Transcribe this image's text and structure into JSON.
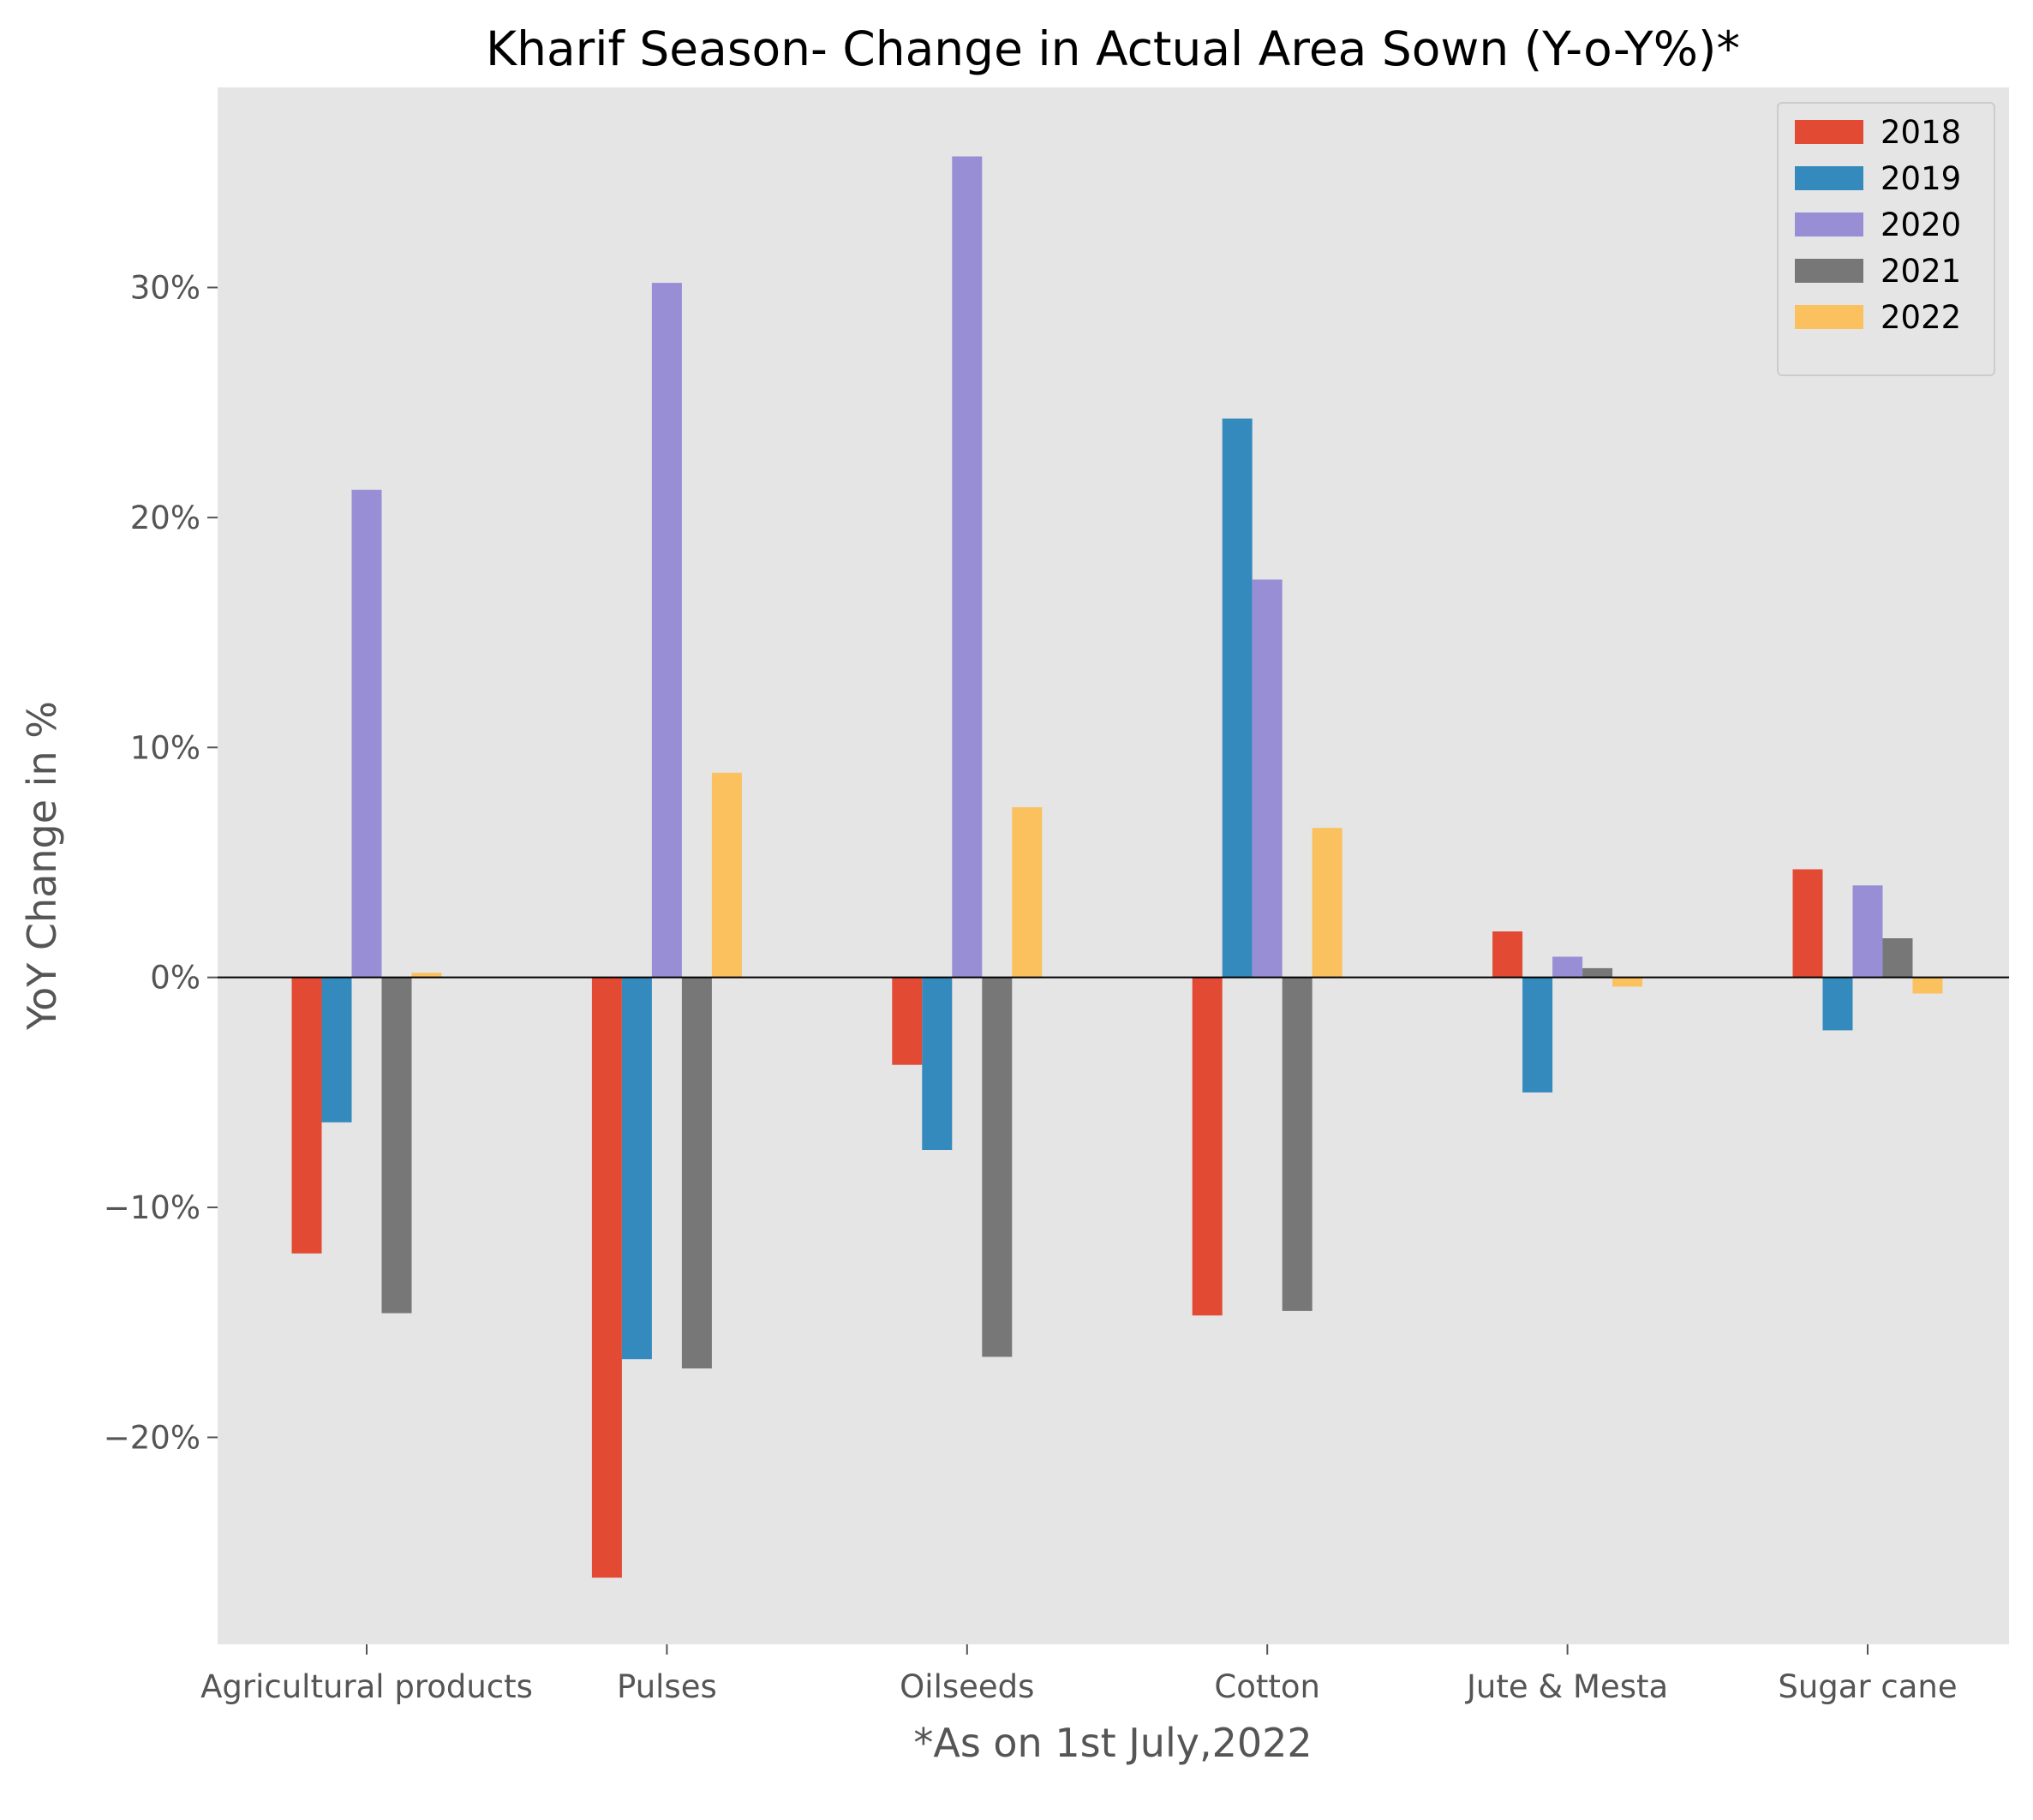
{
  "chart_data": {
    "type": "bar",
    "title": "Kharif Season- Change in Actual Area Sown (Y-o-Y%)*",
    "xlabel": "*As on 1st July,2022",
    "ylabel": "YoY Change in %",
    "categories": [
      "Agricultural products",
      "Pulses",
      "Oilseeds",
      "Cotton",
      "Jute & Mesta",
      "Sugar cane"
    ],
    "series": [
      {
        "name": "2018",
        "color": "#E24A33",
        "values": [
          -12.0,
          -26.1,
          -3.8,
          -14.7,
          2.0,
          4.7
        ]
      },
      {
        "name": "2019",
        "color": "#348ABD",
        "values": [
          -6.3,
          -16.6,
          -7.5,
          24.3,
          -5.0,
          -2.3
        ]
      },
      {
        "name": "2020",
        "color": "#988ED5",
        "values": [
          21.2,
          30.2,
          35.7,
          17.3,
          0.9,
          4.0
        ]
      },
      {
        "name": "2021",
        "color": "#777777",
        "values": [
          -14.6,
          -17.0,
          -16.5,
          -14.5,
          0.4,
          1.7
        ]
      },
      {
        "name": "2022",
        "color": "#FBC15E",
        "values": [
          0.2,
          8.9,
          7.4,
          6.5,
          -0.4,
          -0.7
        ]
      }
    ],
    "ylim": [
      -29.0,
      38.7
    ],
    "yticks": [
      -20,
      -10,
      0,
      10,
      20,
      30
    ],
    "ytick_labels": [
      "−20%",
      "−10%",
      "0%",
      "10%",
      "20%",
      "30%"
    ],
    "grid": false,
    "legend_position": "top-right",
    "background": "#E5E5E5",
    "zero_line": true
  }
}
